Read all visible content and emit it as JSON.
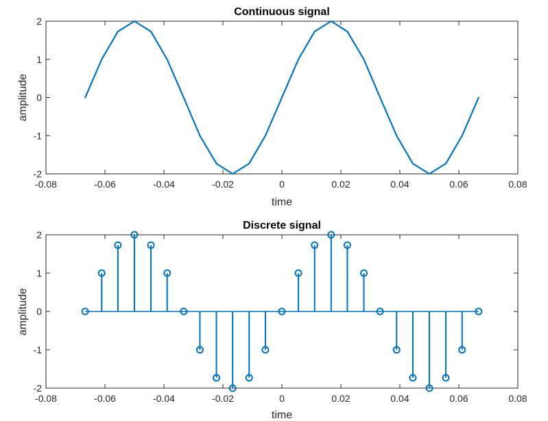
{
  "colors": {
    "series": "#0072BD",
    "axes": "#262626",
    "background": "#ffffff"
  },
  "chart_data": [
    {
      "type": "line",
      "title": "Continuous signal",
      "xlabel": "time",
      "ylabel": "amplitude",
      "xlim": [
        -0.08,
        0.08
      ],
      "ylim": [
        -2,
        2
      ],
      "xticks": [
        -0.08,
        -0.06,
        -0.04,
        -0.02,
        0,
        0.02,
        0.04,
        0.06,
        0.08
      ],
      "xtick_labels": [
        "-0.08",
        "-0.06",
        "-0.04",
        "-0.02",
        "0",
        "0.02",
        "0.04",
        "0.06",
        "0.08"
      ],
      "yticks": [
        -2,
        -1,
        0,
        1,
        2
      ],
      "ytick_labels": [
        "-2",
        "-1",
        "0",
        "1",
        "2"
      ],
      "grid": false,
      "series": [
        {
          "x": [
            -0.0667,
            -0.0611,
            -0.0556,
            -0.05,
            -0.0444,
            -0.0389,
            -0.0333,
            -0.0278,
            -0.0222,
            -0.0167,
            -0.0111,
            -0.0056,
            0,
            0.0056,
            0.0111,
            0.0167,
            0.0222,
            0.0278,
            0.0333,
            0.0389,
            0.0444,
            0.05,
            0.0556,
            0.0611,
            0.0667
          ],
          "y": [
            0,
            1,
            1.73,
            2,
            1.73,
            1,
            0,
            -1,
            -1.73,
            -2,
            -1.73,
            -1,
            0,
            1,
            1.73,
            2,
            1.73,
            1,
            0,
            -1,
            -1.73,
            -2,
            -1.73,
            -1,
            0
          ]
        }
      ]
    },
    {
      "type": "scatter",
      "title": "Discrete signal",
      "xlabel": "time",
      "ylabel": "amplitude",
      "xlim": [
        -0.08,
        0.08
      ],
      "ylim": [
        -2,
        2
      ],
      "xticks": [
        -0.08,
        -0.06,
        -0.04,
        -0.02,
        0,
        0.02,
        0.04,
        0.06,
        0.08
      ],
      "xtick_labels": [
        "-0.08",
        "-0.06",
        "-0.04",
        "-0.02",
        "0",
        "0.02",
        "0.04",
        "0.06",
        "0.08"
      ],
      "yticks": [
        -2,
        -1,
        0,
        1,
        2
      ],
      "ytick_labels": [
        "-2",
        "-1",
        "0",
        "1",
        "2"
      ],
      "grid": false,
      "style": "stem",
      "series": [
        {
          "x": [
            -0.0667,
            -0.0611,
            -0.0556,
            -0.05,
            -0.0444,
            -0.0389,
            -0.0333,
            -0.0278,
            -0.0222,
            -0.0167,
            -0.0111,
            -0.0056,
            0,
            0.0056,
            0.0111,
            0.0167,
            0.0222,
            0.0278,
            0.0333,
            0.0389,
            0.0444,
            0.05,
            0.0556,
            0.0611,
            0.0667
          ],
          "y": [
            0,
            1,
            1.73,
            2,
            1.73,
            1,
            0,
            -1,
            -1.73,
            -2,
            -1.73,
            -1,
            0,
            1,
            1.73,
            2,
            1.73,
            1,
            0,
            -1,
            -1.73,
            -2,
            -1.73,
            -1,
            0
          ]
        }
      ]
    }
  ]
}
